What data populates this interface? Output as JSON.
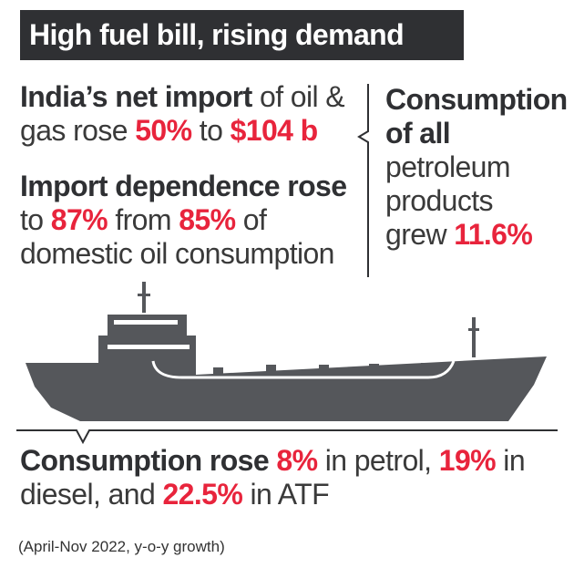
{
  "header": {
    "title": "High fuel bill, rising demand"
  },
  "net_import": {
    "highlight": "India’s net import",
    "text1": " of oil &",
    "text2": "gas rose ",
    "pct": "50%",
    "text3": " to ",
    "amount": "$104 b"
  },
  "import_dependence": {
    "highlight": "Import dependence rose",
    "text1": "to ",
    "pct_new": "87%",
    "text2": " from ",
    "pct_old": "85%",
    "text3": " of",
    "text4": "domestic oil consumption"
  },
  "consumption_all": {
    "line1": "Consumption",
    "line2": "of all",
    "line3": "petroleum",
    "line4": "products",
    "text5": "grew ",
    "pct": "11.6%"
  },
  "consumption_rose": {
    "highlight": "Consumption rose",
    "sp1": " ",
    "petrol_pct": "8%",
    "text1": " in petrol, ",
    "diesel_pct": "19%",
    "text2": " in",
    "text3": "diesel, and ",
    "atf_pct": "22.5%",
    "text4": " in ATF"
  },
  "footnote": "(April-Nov 2022, y-o-y growth)",
  "colors": {
    "dark": "#2f3033",
    "accent": "#e8243c",
    "text": "#3a3a3a",
    "ship": "#55575b"
  }
}
